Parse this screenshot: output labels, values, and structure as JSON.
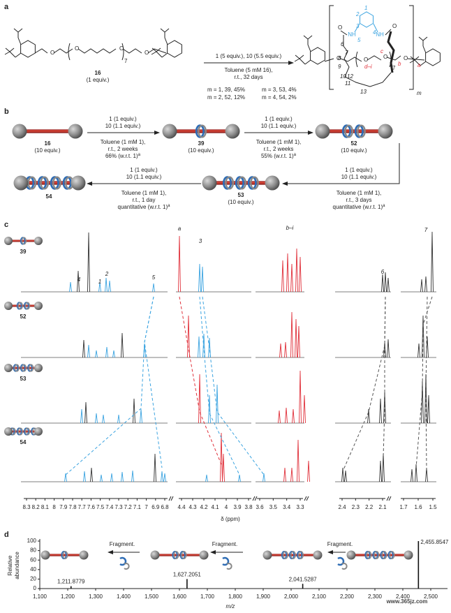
{
  "panel_labels": [
    "a",
    "b",
    "c",
    "d"
  ],
  "panel_a": {
    "reactant": {
      "label": "16",
      "amount": "(1 equiv.)",
      "repeat": "7",
      "atoms": [
        "O",
        "O",
        "O",
        "O"
      ]
    },
    "conditions_above": "1 (5 equiv.), 10 (5.5 equiv.)",
    "conditions_below": [
      "Toluene (5  mM 16),",
      "r.t., 32 days"
    ],
    "yields": [
      "m = 1, 39, 45%",
      "m = 3, 53, 4%",
      "m = 2, 52, 12%",
      "m = 4, 54, 2%"
    ],
    "product": {
      "ring_numbers": [
        "1",
        "2",
        "3",
        "4",
        "5",
        "6",
        "7",
        "8",
        "9",
        "10",
        "11",
        "12",
        "13"
      ],
      "axle_letters": [
        "a",
        "b",
        "c",
        "d–i"
      ],
      "repeat": "7",
      "atoms": [
        "NH",
        "NH",
        "O",
        "O",
        "O",
        "O",
        "O",
        "O"
      ],
      "subscript": "m"
    }
  },
  "panel_b": {
    "compounds": [
      {
        "label": "16",
        "amount": "(10 equiv.)"
      },
      {
        "label": "39",
        "amount": "(10 equiv.)"
      },
      {
        "label": "52",
        "amount": "(10 equiv.)"
      },
      {
        "label": "53",
        "amount": "(10 equiv.)"
      },
      {
        "label": "54"
      }
    ],
    "steps": [
      {
        "lines": [
          "1 (1 equiv.)",
          "10 (1.1 equiv.)",
          "Toluene (1 mM 1),",
          "r.t., 2 weeks",
          "66% (w.r.t. 1)"
        ],
        "note": "a"
      },
      {
        "lines": [
          "1 (1 equiv.)",
          "10 (1.1 equiv.)",
          "Toluene (1 mM 1),",
          "r.t., 2 weeks",
          "55% (w.r.t. 1)"
        ],
        "note": "a"
      },
      {
        "lines": [
          "1 (1 equiv.)",
          "10 (1.1 equiv.)",
          "Toluene (1 mM 1),",
          "r.t., 3 days",
          "quantitative (w.r.t. 1)"
        ],
        "note": "a"
      },
      {
        "lines": [
          "1 (1 equiv.)",
          "10 (1.1 equiv.)",
          "Toluene (1 mM 1),",
          "r.t., 1 day",
          "quantitative (w.r.t. 1)"
        ],
        "note": "a"
      }
    ]
  },
  "panel_c": {
    "rows": [
      "39",
      "52",
      "53",
      "54"
    ],
    "peak_labels": [
      "4",
      "1",
      "2",
      "5",
      "a",
      "3",
      "b–i",
      "6",
      "7"
    ],
    "axis_segments": [
      [
        8.3,
        8.2,
        8.1,
        8.0,
        7.9,
        7.8,
        7.7,
        7.6,
        7.5,
        7.4,
        7.3,
        7.2,
        7.1,
        7.0,
        6.9,
        6.8
      ],
      [
        4.4,
        4.3,
        4.2,
        4.1,
        4.0,
        3.9,
        3.8
      ],
      [
        3.6,
        3.5,
        3.4,
        3.3
      ],
      [
        2.4,
        2.3,
        2.2,
        2.1
      ],
      [
        1.7,
        1.6,
        1.5
      ]
    ],
    "xlabel": "δ (ppm)"
  },
  "panel_d": {
    "ylabel": [
      "Relative",
      "abundance"
    ],
    "xlabel": "m/z",
    "arrows": [
      "Fragment.",
      "Fragment.",
      "Fragment."
    ],
    "x": [
      1211.8779,
      1627.2051,
      2041.5287,
      2455.8547
    ],
    "values": [
      5,
      20,
      10,
      100
    ],
    "value_labels": [
      "1,211.8779",
      "1,627.2051",
      "2,041.5287",
      "2,455.8547"
    ],
    "xlim": [
      1100,
      2560
    ],
    "ylim": [
      0,
      100
    ],
    "xticks": [
      {
        "value": 1100,
        "label": "1,100"
      },
      {
        "value": 1200,
        "label": "1,200"
      },
      {
        "value": 1300,
        "label": "1,300"
      },
      {
        "value": 1400,
        "label": "1,400"
      },
      {
        "value": 1500,
        "label": "1,500"
      },
      {
        "value": 1600,
        "label": "1,600"
      },
      {
        "value": 1700,
        "label": "1,700"
      },
      {
        "value": 1800,
        "label": "1,800"
      },
      {
        "value": 1900,
        "label": "1,900"
      },
      {
        "value": 2000,
        "label": "2,000"
      },
      {
        "value": 2100,
        "label": "2,100"
      },
      {
        "value": 2200,
        "label": "2,200"
      },
      {
        "value": 2300,
        "label": "2,300"
      },
      {
        "value": 2400,
        "label": "2,400"
      },
      {
        "value": 2500,
        "label": "2,500"
      }
    ],
    "yticks": [
      0,
      20,
      40,
      60,
      80,
      100
    ],
    "color": "#111111"
  },
  "watermark": "www.365jz.com"
}
